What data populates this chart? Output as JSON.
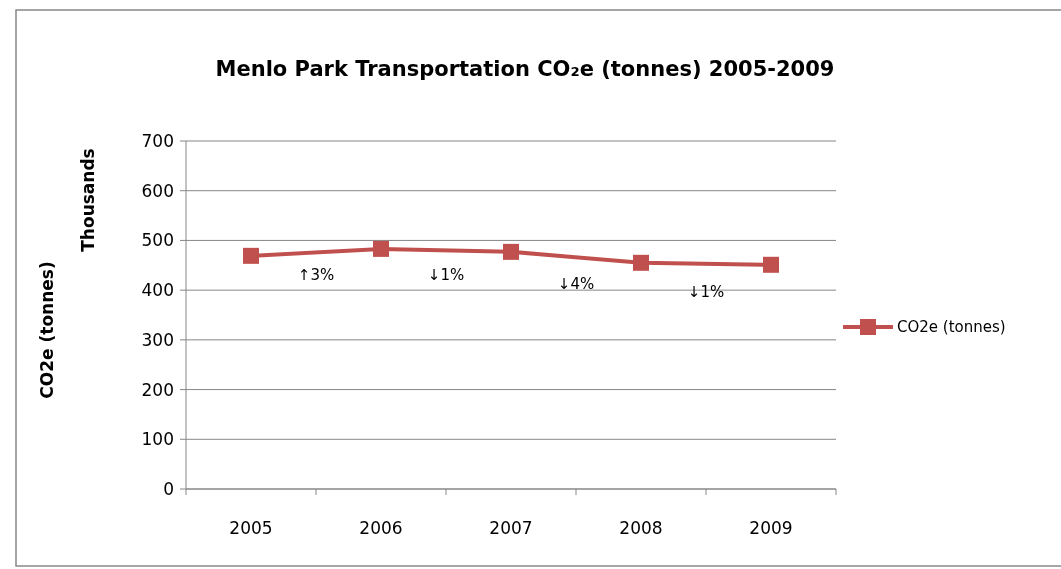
{
  "chart_data": {
    "type": "line",
    "title": "Menlo Park Transportation CO₂e (tonnes) 2005-2009",
    "ylabel": "CO2e (tonnes)",
    "categories": [
      "2005",
      "2006",
      "2007",
      "2008",
      "2009"
    ],
    "series": [
      {
        "name": "CO2e (tonnes)",
        "color": "#c0504d",
        "values": [
          469,
          483,
          477,
          455,
          451
        ]
      }
    ],
    "ylim": [
      0,
      700
    ],
    "yticks": [
      0,
      100,
      200,
      300,
      400,
      500,
      600,
      700
    ],
    "grid": "y",
    "legend": "right",
    "marker": "square",
    "line_style": "solid",
    "annotations": [
      "Thousands",
      "↑3%",
      "↓1%",
      "↓4%",
      "↓1%"
    ]
  }
}
